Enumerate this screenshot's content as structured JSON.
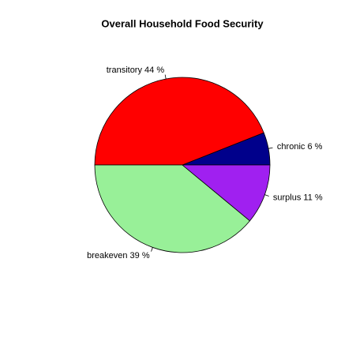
{
  "chart_data": {
    "type": "pie",
    "title": "Overall Household Food Security",
    "values": [
      6,
      44,
      39,
      11
    ],
    "value_labels": [
      "chronic 6 %",
      "transitory 44 %",
      "breakeven 39 %",
      "surplus 11 %"
    ],
    "colors": [
      "#00008b",
      "#ff0000",
      "#98f098",
      "#a020f0"
    ]
  }
}
